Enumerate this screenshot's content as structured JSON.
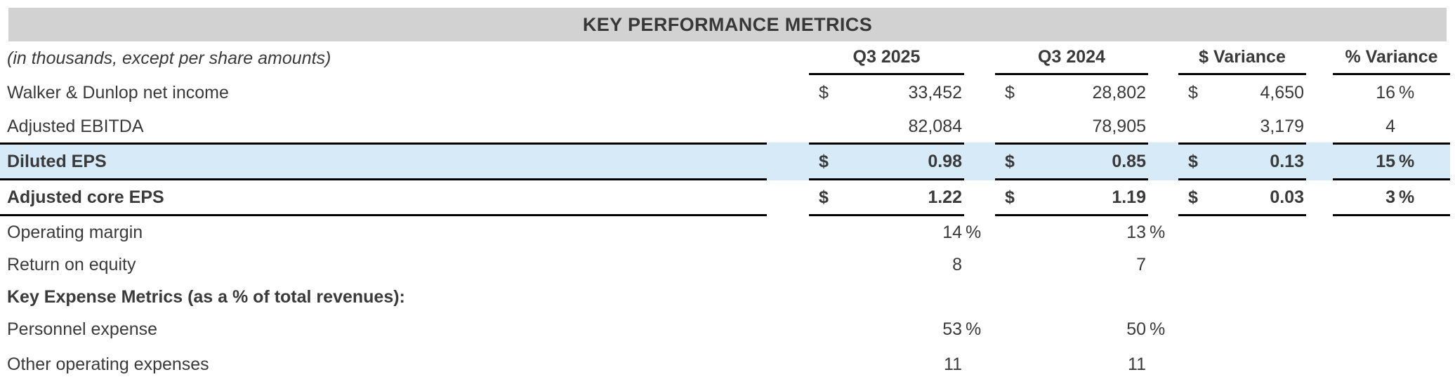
{
  "title": "KEY PERFORMANCE METRICS",
  "note": "(in thousands, except per share amounts)",
  "columns": [
    "Q3 2025",
    "Q3 2024",
    "$ Variance",
    "% Variance"
  ],
  "colors": {
    "title_bar_bg": "#d2d2d2",
    "highlight_row_bg": "#d6eaf8",
    "text": "#3a3a3a",
    "rule_lines": "#000000"
  },
  "table": {
    "rows": [
      {
        "label": "Walker & Dunlop net income",
        "cols": [
          {
            "sym": "$",
            "value": "33,452",
            "suffix": ""
          },
          {
            "sym": "$",
            "value": "28,802",
            "suffix": ""
          },
          {
            "sym": "$",
            "value": "4,650"
          },
          {
            "value": "16",
            "suffix": "%"
          }
        ]
      },
      {
        "label": "Adjusted EBITDA",
        "cols": [
          {
            "sym": "",
            "value": "82,084",
            "suffix": ""
          },
          {
            "sym": "",
            "value": "78,905",
            "suffix": ""
          },
          {
            "sym": "",
            "value": "3,179"
          },
          {
            "value": "4",
            "suffix": ""
          }
        ]
      },
      {
        "label": "Diluted EPS",
        "cols": [
          {
            "sym": "$",
            "value": "0.98",
            "suffix": ""
          },
          {
            "sym": "$",
            "value": "0.85",
            "suffix": ""
          },
          {
            "sym": "$",
            "value": "0.13"
          },
          {
            "value": "15",
            "suffix": "%"
          }
        ]
      },
      {
        "label": "Adjusted core EPS",
        "cols": [
          {
            "sym": "$",
            "value": "1.22",
            "suffix": ""
          },
          {
            "sym": "$",
            "value": "1.19",
            "suffix": ""
          },
          {
            "sym": "$",
            "value": "0.03"
          },
          {
            "value": "3",
            "suffix": "%"
          }
        ]
      },
      {
        "label": "Operating margin",
        "cols": [
          {
            "sym": "",
            "value": "14",
            "suffix": "%"
          },
          {
            "sym": "",
            "value": "13",
            "suffix": "%"
          },
          {
            "sym": "",
            "value": ""
          },
          {
            "value": "",
            "suffix": ""
          }
        ]
      },
      {
        "label": "Return on equity",
        "cols": [
          {
            "sym": "",
            "value": "8",
            "suffix": ""
          },
          {
            "sym": "",
            "value": "7",
            "suffix": ""
          },
          {
            "sym": "",
            "value": ""
          },
          {
            "value": "",
            "suffix": ""
          }
        ]
      },
      {
        "label": "Key Expense Metrics (as a % of total revenues):",
        "cols": [
          {
            "sym": "",
            "value": "",
            "suffix": ""
          },
          {
            "sym": "",
            "value": "",
            "suffix": ""
          },
          {
            "sym": "",
            "value": ""
          },
          {
            "value": "",
            "suffix": ""
          }
        ]
      },
      {
        "label": "Personnel expense",
        "cols": [
          {
            "sym": "",
            "value": "53",
            "suffix": "%"
          },
          {
            "sym": "",
            "value": "50",
            "suffix": "%"
          },
          {
            "sym": "",
            "value": ""
          },
          {
            "value": "",
            "suffix": ""
          }
        ]
      },
      {
        "label": "Other operating expenses",
        "cols": [
          {
            "sym": "",
            "value": "11",
            "suffix": ""
          },
          {
            "sym": "",
            "value": "11",
            "suffix": ""
          },
          {
            "sym": "",
            "value": ""
          },
          {
            "value": "",
            "suffix": ""
          }
        ]
      }
    ]
  }
}
